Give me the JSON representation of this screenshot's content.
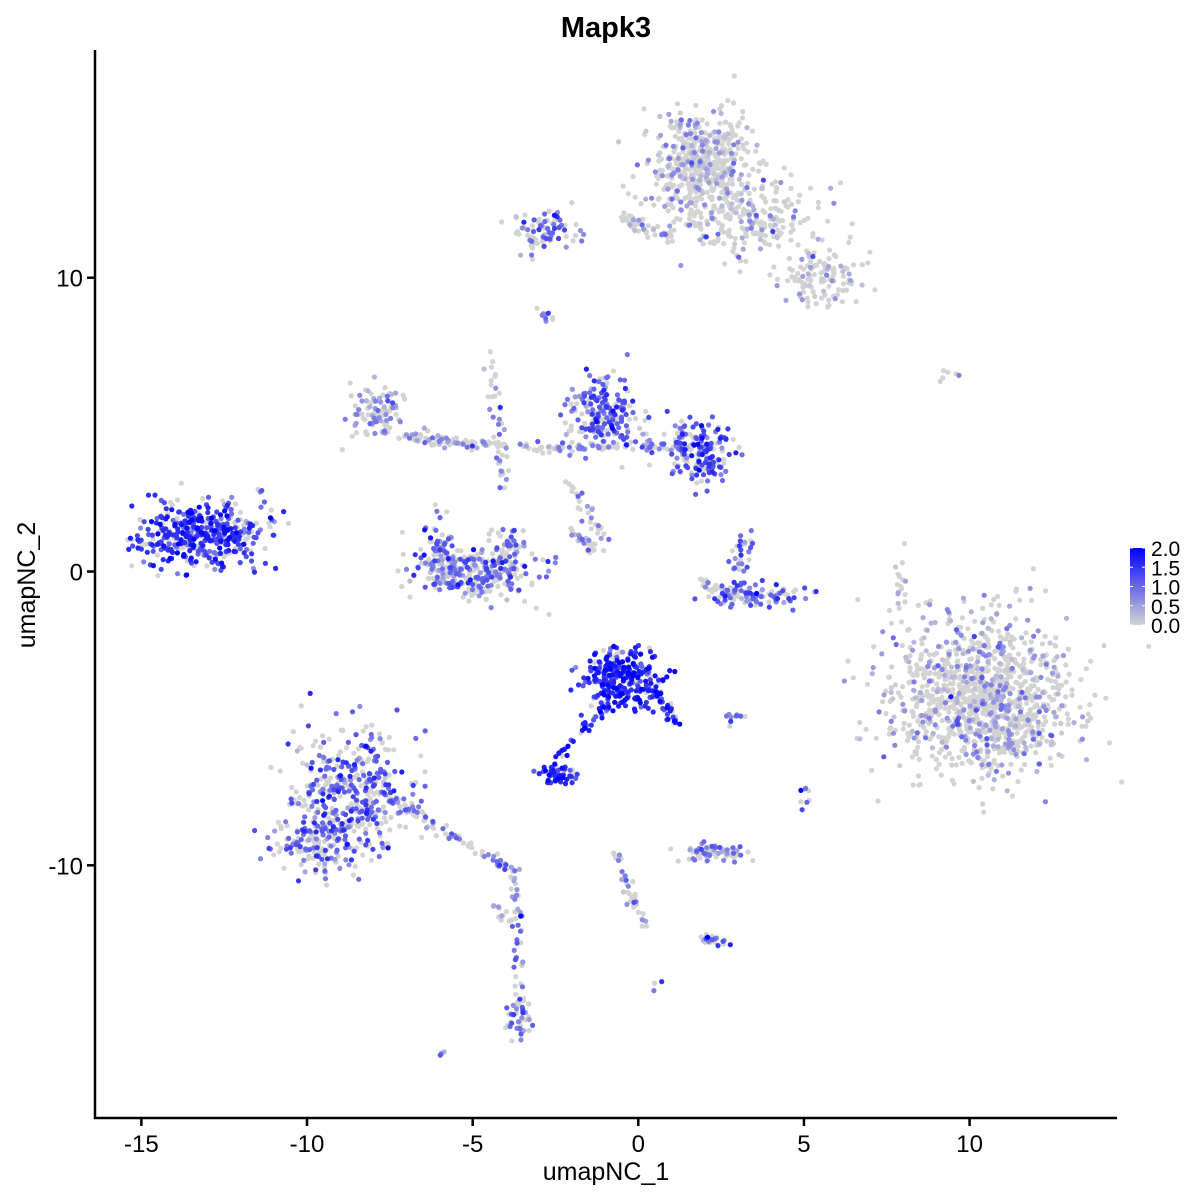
{
  "chart_data": {
    "type": "scatter",
    "title": "Mapk3",
    "xlabel": "umapNC_1",
    "ylabel": "umapNC_2",
    "xlim": [
      -16.4,
      14.45
    ],
    "ylim": [
      -18.6,
      17.75
    ],
    "xticks": [
      -15,
      -10,
      -5,
      0,
      5,
      10
    ],
    "yticks": [
      -10,
      0,
      10
    ],
    "grid": false,
    "legend": {
      "placement": "right",
      "ticks": [
        "0.0",
        "0.5",
        "1.0",
        "1.5",
        "2.0"
      ],
      "range": [
        0,
        2
      ],
      "low_color": "#d3d3d3",
      "high_color": "#0000ff"
    },
    "clusters": [
      {
        "x": -13.4,
        "y": 1.2,
        "sx": 0.9,
        "sy": 0.55,
        "n": 380,
        "expr": 1.15
      },
      {
        "x": -12.0,
        "y": 1.5,
        "sx": 0.5,
        "sy": 0.6,
        "n": 40,
        "expr": 0.8
      },
      {
        "x": 1.9,
        "y": 13.8,
        "sx": 0.75,
        "sy": 0.9,
        "n": 550,
        "expr": 0.12
      },
      {
        "x": 3.6,
        "y": 12.0,
        "sx": 1.0,
        "sy": 0.6,
        "n": 200,
        "expr": 0.1
      },
      {
        "x": 5.5,
        "y": 10.0,
        "sx": 0.6,
        "sy": 0.5,
        "n": 120,
        "expr": 0.08
      },
      {
        "x": -2.8,
        "y": 11.6,
        "sx": 0.5,
        "sy": 0.35,
        "n": 80,
        "expr": 0.6
      },
      {
        "x": 10.3,
        "y": -4.2,
        "sx": 1.35,
        "sy": 1.3,
        "n": 1100,
        "expr": 0.15
      },
      {
        "x": -0.5,
        "y": -3.7,
        "sx": 0.6,
        "sy": 0.5,
        "n": 280,
        "expr": 1.3
      },
      {
        "x": -8.7,
        "y": -7.6,
        "sx": 0.9,
        "sy": 1.1,
        "n": 420,
        "expr": 0.75
      },
      {
        "x": -9.8,
        "y": -9.2,
        "sx": 0.6,
        "sy": 0.5,
        "n": 120,
        "expr": 0.7
      },
      {
        "x": -1.1,
        "y": 5.4,
        "sx": 0.55,
        "sy": 0.6,
        "n": 200,
        "expr": 0.85
      },
      {
        "x": 1.9,
        "y": 4.1,
        "sx": 0.5,
        "sy": 0.5,
        "n": 170,
        "expr": 0.9
      },
      {
        "x": -7.8,
        "y": 5.4,
        "sx": 0.5,
        "sy": 0.45,
        "n": 90,
        "expr": 0.3
      },
      {
        "x": -5.0,
        "y": -0.1,
        "sx": 0.9,
        "sy": 0.45,
        "n": 260,
        "expr": 0.65
      },
      {
        "x": -6.0,
        "y": 0.7,
        "sx": 0.2,
        "sy": 0.6,
        "n": 60,
        "expr": 0.7
      },
      {
        "x": -3.9,
        "y": 0.6,
        "sx": 0.25,
        "sy": 0.6,
        "n": 60,
        "expr": 0.6
      },
      {
        "x": 3.5,
        "y": -0.8,
        "sx": 0.7,
        "sy": 0.2,
        "n": 90,
        "expr": 0.9
      },
      {
        "x": 3.1,
        "y": 0.7,
        "sx": 0.2,
        "sy": 0.5,
        "n": 30,
        "expr": 0.7
      },
      {
        "x": -2.4,
        "y": -6.9,
        "sx": 0.3,
        "sy": 0.15,
        "n": 60,
        "expr": 1.2
      },
      {
        "x": 2.3,
        "y": -9.6,
        "sx": 0.5,
        "sy": 0.15,
        "n": 70,
        "expr": 0.6
      },
      {
        "x": 2.3,
        "y": -12.5,
        "sx": 0.2,
        "sy": 0.1,
        "n": 20,
        "expr": 0.9
      },
      {
        "x": -3.6,
        "y": -15.4,
        "sx": 0.2,
        "sy": 0.35,
        "n": 35,
        "expr": 0.8
      },
      {
        "x": 11.2,
        "y": -5.5,
        "sx": 0.6,
        "sy": 0.5,
        "n": 60,
        "expr": 0.1
      }
    ],
    "trails": [
      {
        "from": [
          -0.5,
          12.0
        ],
        "to": [
          1.0,
          11.3
        ],
        "n": 50,
        "expr": 0.15
      },
      {
        "from": [
          -2.8,
          8.8
        ],
        "to": [
          -2.6,
          8.5
        ],
        "n": 10,
        "expr": 0.7
      },
      {
        "from": [
          -4.5,
          7.5
        ],
        "to": [
          -4.0,
          2.5
        ],
        "n": 40,
        "expr": 0.4
      },
      {
        "from": [
          -7.2,
          4.6
        ],
        "to": [
          -3.2,
          4.2
        ],
        "n": 80,
        "expr": 0.3
      },
      {
        "from": [
          -3.2,
          4.2
        ],
        "to": [
          1.5,
          4.3
        ],
        "n": 90,
        "expr": 0.45
      },
      {
        "from": [
          -2.0,
          3.0
        ],
        "to": [
          -1.1,
          1.2
        ],
        "n": 30,
        "expr": 0.4
      },
      {
        "from": [
          -2.2,
          1.5
        ],
        "to": [
          -1.3,
          0.7
        ],
        "n": 25,
        "expr": 0.4
      },
      {
        "from": [
          -0.9,
          -4.5
        ],
        "to": [
          -2.4,
          -6.3
        ],
        "n": 40,
        "expr": 1.2
      },
      {
        "from": [
          0.5,
          -4.0
        ],
        "to": [
          1.2,
          -5.3
        ],
        "n": 35,
        "expr": 1.2
      },
      {
        "from": [
          -7.6,
          -7.7
        ],
        "to": [
          -3.6,
          -10.3
        ],
        "n": 90,
        "expr": 0.5
      },
      {
        "from": [
          -3.7,
          -10.5
        ],
        "to": [
          -3.6,
          -15.2
        ],
        "n": 40,
        "expr": 0.5
      },
      {
        "from": [
          -4.3,
          -11.2
        ],
        "to": [
          -3.9,
          -12.0
        ],
        "n": 10,
        "expr": 0.3
      },
      {
        "from": [
          -0.8,
          -9.3
        ],
        "to": [
          0.2,
          -12.0
        ],
        "n": 35,
        "expr": 0.6
      },
      {
        "from": [
          1.8,
          -0.3
        ],
        "to": [
          3.2,
          -0.9
        ],
        "n": 25,
        "expr": 0.2
      },
      {
        "from": [
          8.0,
          1.0
        ],
        "to": [
          7.9,
          -1.2
        ],
        "n": 15,
        "expr": 0.05
      },
      {
        "from": [
          9.2,
          6.7
        ],
        "to": [
          9.7,
          6.8
        ],
        "n": 6,
        "expr": 0.0
      },
      {
        "from": [
          2.6,
          -5.0
        ],
        "to": [
          3.3,
          -4.9
        ],
        "n": 10,
        "expr": 0.7
      },
      {
        "from": [
          5.0,
          -7.3
        ],
        "to": [
          5.1,
          -8.0
        ],
        "n": 8,
        "expr": 0.8
      },
      {
        "from": [
          -6.1,
          -16.4
        ],
        "to": [
          -6.0,
          -16.3
        ],
        "n": 3,
        "expr": 0.7
      },
      {
        "from": [
          0.6,
          -14.1
        ],
        "to": [
          0.7,
          -14.2
        ],
        "n": 3,
        "expr": 0.7
      },
      {
        "from": [
          -11.0,
          1.4
        ],
        "to": [
          -11.5,
          2.8
        ],
        "n": 8,
        "expr": 0.6
      }
    ]
  }
}
